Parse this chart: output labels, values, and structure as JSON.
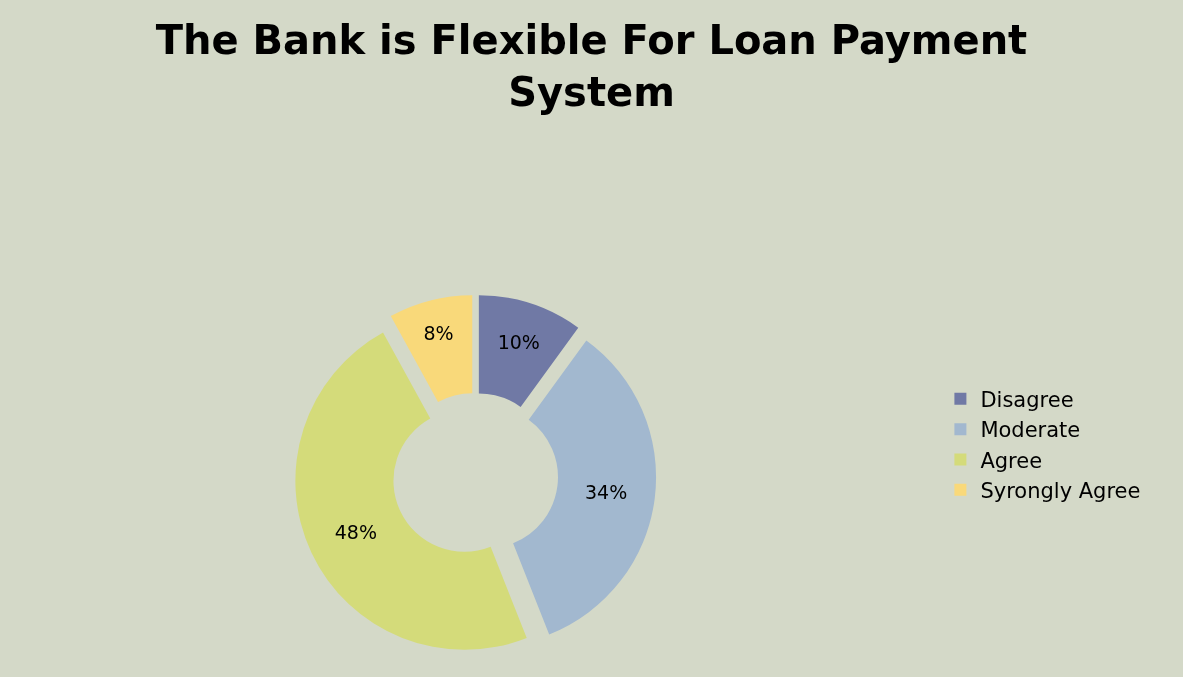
{
  "chart_data": {
    "type": "donut",
    "title": "The Bank is Flexible For Loan Payment System",
    "categories": [
      "Disagree",
      "Moderate",
      "Agree",
      "Syrongly Agree"
    ],
    "values": [
      10,
      34,
      48,
      8
    ],
    "colors": [
      "#7079a5",
      "#a2b8cf",
      "#d4db7a",
      "#f9d97a"
    ],
    "value_labels": [
      "10%",
      "34%",
      "48%",
      "8%"
    ],
    "legend": "right"
  }
}
